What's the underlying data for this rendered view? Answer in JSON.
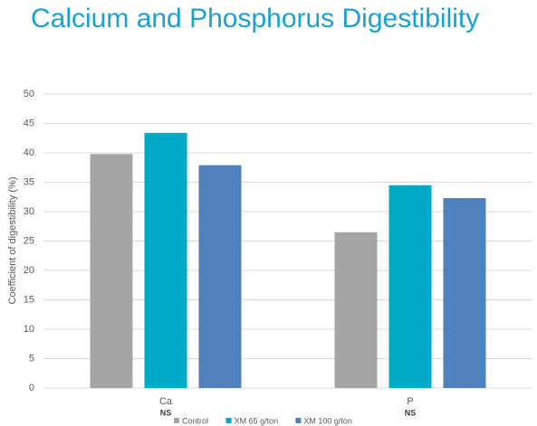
{
  "chart_data": {
    "type": "bar",
    "title": "Calcium and Phosphorus Digestibility",
    "y_label": "Coefficient of digestibility (%)",
    "categories": [
      "Ca",
      "P"
    ],
    "annotations": [
      "NS",
      "NS"
    ],
    "series": [
      {
        "name": "Control",
        "color": "#a5a5a5",
        "values": [
          39.8,
          26.5
        ]
      },
      {
        "name": "XM 65 g/ton",
        "color": "#00a9c6",
        "values": [
          43.4,
          34.5
        ]
      },
      {
        "name": "XM 100 g/ton",
        "color": "#4f81bd",
        "values": [
          37.9,
          32.3
        ]
      }
    ],
    "ylim": [
      0,
      50
    ],
    "yticks": [
      0,
      5,
      10,
      15,
      20,
      25,
      30,
      35,
      40,
      45,
      50
    ],
    "grid": true,
    "legend": "bottom"
  }
}
